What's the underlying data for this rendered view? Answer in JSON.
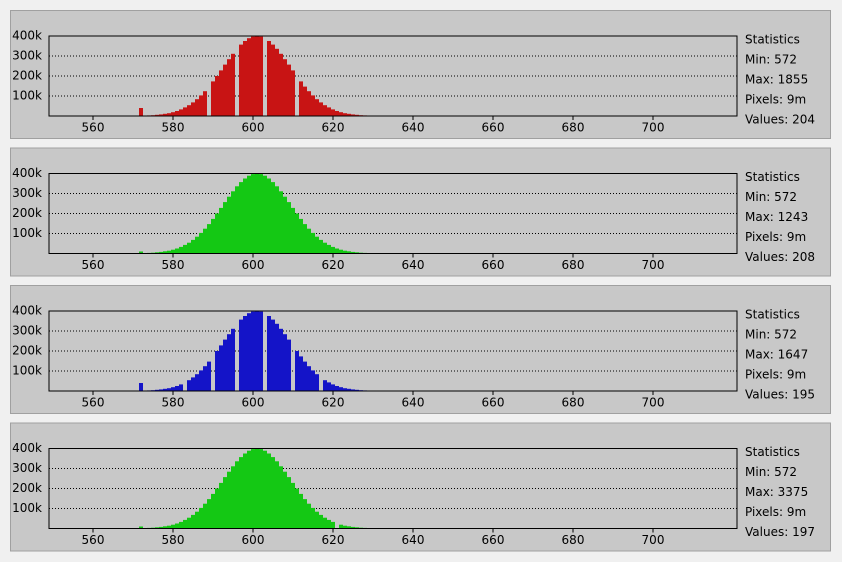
{
  "chart_data": [
    {
      "type": "histogram",
      "color": "#c81414",
      "grid": true,
      "x": [
        572,
        573,
        574,
        575,
        576,
        577,
        578,
        579,
        580,
        581,
        582,
        583,
        584,
        585,
        586,
        587,
        588,
        589,
        590,
        591,
        592,
        593,
        594,
        595,
        596,
        597,
        598,
        599,
        600,
        601,
        602,
        603,
        604,
        605,
        606,
        607,
        608,
        609,
        610,
        611,
        612,
        613,
        614,
        615,
        616,
        617,
        618,
        619,
        620,
        621,
        622,
        623,
        624,
        625,
        626,
        627,
        628,
        629,
        630,
        631
      ],
      "values": [
        40000,
        2000,
        3000,
        4000,
        6000,
        8000,
        11000,
        14000,
        19000,
        25000,
        33000,
        43000,
        54000,
        68000,
        84000,
        103000,
        124000,
        0,
        173000,
        200000,
        228000,
        257000,
        284000,
        311000,
        0,
        357000,
        375000,
        389000,
        397000,
        400000,
        397000,
        0,
        375000,
        357000,
        336000,
        311000,
        284000,
        257000,
        228000,
        0,
        173000,
        147000,
        124000,
        103000,
        84000,
        68000,
        54000,
        43000,
        33000,
        25000,
        19000,
        14000,
        11000,
        8000,
        6000,
        4000,
        3000,
        2000,
        1000,
        1000
      ],
      "xlim": [
        549,
        721
      ],
      "xticks": [
        560,
        580,
        600,
        620,
        640,
        660,
        680,
        700
      ],
      "ylim": [
        0,
        400000
      ],
      "yticks": [
        {
          "value": 100000,
          "label": "100k"
        },
        {
          "value": 200000,
          "label": "200k"
        },
        {
          "value": 300000,
          "label": "300k"
        },
        {
          "value": 400000,
          "label": "400k"
        }
      ],
      "stats_title": "Statistics",
      "stats": [
        "Min: 572",
        "Max: 1855",
        "Pixels: 9m",
        "Values: 204"
      ]
    },
    {
      "type": "histogram",
      "color": "#14c814",
      "grid": true,
      "x": [
        572,
        573,
        574,
        575,
        576,
        577,
        578,
        579,
        580,
        581,
        582,
        583,
        584,
        585,
        586,
        587,
        588,
        589,
        590,
        591,
        592,
        593,
        594,
        595,
        596,
        597,
        598,
        599,
        600,
        601,
        602,
        603,
        604,
        605,
        606,
        607,
        608,
        609,
        610,
        611,
        612,
        613,
        614,
        615,
        616,
        617,
        618,
        619,
        620,
        621,
        622,
        623,
        624,
        625,
        626,
        627,
        628,
        629,
        630,
        631
      ],
      "values": [
        10000,
        2000,
        3000,
        4000,
        6000,
        8000,
        11000,
        14000,
        19000,
        25000,
        33000,
        43000,
        54000,
        68000,
        84000,
        103000,
        124000,
        147000,
        173000,
        200000,
        228000,
        257000,
        284000,
        311000,
        336000,
        357000,
        375000,
        389000,
        397000,
        400000,
        397000,
        389000,
        375000,
        357000,
        336000,
        311000,
        284000,
        257000,
        228000,
        200000,
        173000,
        147000,
        124000,
        103000,
        84000,
        68000,
        54000,
        43000,
        33000,
        25000,
        19000,
        14000,
        11000,
        8000,
        6000,
        4000,
        3000,
        2000,
        1000,
        1000
      ],
      "xlim": [
        549,
        721
      ],
      "xticks": [
        560,
        580,
        600,
        620,
        640,
        660,
        680,
        700
      ],
      "ylim": [
        0,
        400000
      ],
      "yticks": [
        {
          "value": 100000,
          "label": "100k"
        },
        {
          "value": 200000,
          "label": "200k"
        },
        {
          "value": 300000,
          "label": "300k"
        },
        {
          "value": 400000,
          "label": "400k"
        }
      ],
      "stats_title": "Statistics",
      "stats": [
        "Min: 572",
        "Max: 1243",
        "Pixels: 9m",
        "Values: 208"
      ]
    },
    {
      "type": "histogram",
      "color": "#1414c8",
      "grid": true,
      "x": [
        572,
        573,
        574,
        575,
        576,
        577,
        578,
        579,
        580,
        581,
        582,
        583,
        584,
        585,
        586,
        587,
        588,
        589,
        590,
        591,
        592,
        593,
        594,
        595,
        596,
        597,
        598,
        599,
        600,
        601,
        602,
        603,
        604,
        605,
        606,
        607,
        608,
        609,
        610,
        611,
        612,
        613,
        614,
        615,
        616,
        617,
        618,
        619,
        620,
        621,
        622,
        623,
        624,
        625,
        626,
        627,
        628,
        629,
        630,
        631
      ],
      "values": [
        40000,
        2000,
        3000,
        4000,
        6000,
        8000,
        11000,
        14000,
        19000,
        25000,
        33000,
        0,
        54000,
        68000,
        84000,
        103000,
        124000,
        147000,
        0,
        200000,
        228000,
        257000,
        284000,
        311000,
        0,
        357000,
        375000,
        389000,
        397000,
        400000,
        397000,
        0,
        375000,
        357000,
        336000,
        311000,
        284000,
        257000,
        0,
        200000,
        173000,
        147000,
        124000,
        103000,
        84000,
        0,
        54000,
        43000,
        33000,
        25000,
        19000,
        14000,
        11000,
        8000,
        6000,
        4000,
        3000,
        2000,
        1000,
        1000
      ],
      "xlim": [
        549,
        721
      ],
      "xticks": [
        560,
        580,
        600,
        620,
        640,
        660,
        680,
        700
      ],
      "ylim": [
        0,
        400000
      ],
      "yticks": [
        {
          "value": 100000,
          "label": "100k"
        },
        {
          "value": 200000,
          "label": "200k"
        },
        {
          "value": 300000,
          "label": "300k"
        },
        {
          "value": 400000,
          "label": "400k"
        }
      ],
      "stats_title": "Statistics",
      "stats": [
        "Min: 572",
        "Max: 1647",
        "Pixels: 9m",
        "Values: 195"
      ]
    },
    {
      "type": "histogram",
      "color": "#14c814",
      "grid": true,
      "x": [
        572,
        573,
        574,
        575,
        576,
        577,
        578,
        579,
        580,
        581,
        582,
        583,
        584,
        585,
        586,
        587,
        588,
        589,
        590,
        591,
        592,
        593,
        594,
        595,
        596,
        597,
        598,
        599,
        600,
        601,
        602,
        603,
        604,
        605,
        606,
        607,
        608,
        609,
        610,
        611,
        612,
        613,
        614,
        615,
        616,
        617,
        618,
        619,
        620,
        621,
        622,
        623,
        624,
        625,
        626,
        627,
        628,
        629,
        630,
        631
      ],
      "values": [
        10000,
        2000,
        3000,
        4000,
        6000,
        8000,
        11000,
        14000,
        19000,
        25000,
        33000,
        43000,
        54000,
        68000,
        84000,
        103000,
        124000,
        147000,
        173000,
        200000,
        228000,
        257000,
        284000,
        311000,
        336000,
        357000,
        375000,
        389000,
        397000,
        400000,
        397000,
        389000,
        375000,
        357000,
        336000,
        311000,
        284000,
        257000,
        228000,
        200000,
        173000,
        147000,
        124000,
        103000,
        84000,
        68000,
        54000,
        43000,
        33000,
        0,
        19000,
        14000,
        11000,
        8000,
        6000,
        4000,
        3000,
        2000,
        1000,
        1000
      ],
      "xlim": [
        549,
        721
      ],
      "xticks": [
        560,
        580,
        600,
        620,
        640,
        660,
        680,
        700
      ],
      "ylim": [
        0,
        400000
      ],
      "yticks": [
        {
          "value": 100000,
          "label": "100k"
        },
        {
          "value": 200000,
          "label": "200k"
        },
        {
          "value": 300000,
          "label": "300k"
        },
        {
          "value": 400000,
          "label": "400k"
        }
      ],
      "stats_title": "Statistics",
      "stats": [
        "Min: 572",
        "Max: 3375",
        "Pixels: 9m",
        "Values: 197"
      ]
    }
  ]
}
